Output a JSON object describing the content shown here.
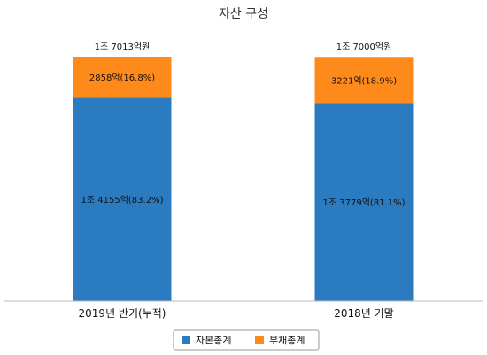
{
  "chart_data": {
    "type": "bar",
    "stacked": true,
    "title": "자산 구성",
    "categories": [
      "2019년 반기(누적)",
      "2018년 기말"
    ],
    "series": [
      {
        "name": "자본총계",
        "color": "#2b7bc0",
        "values": [
          14155,
          13779
        ],
        "labels": [
          "1조 4155억(83.2%)",
          "1조 3779억(81.1%)"
        ]
      },
      {
        "name": "부채총계",
        "color": "#ff8a1c",
        "values": [
          2858,
          3221
        ],
        "labels": [
          "2858억(16.8%)",
          "3221억(18.9%)"
        ]
      }
    ],
    "totals": [
      17013,
      17000
    ],
    "total_labels": [
      "1조 7013억원",
      "1조 7000억원"
    ],
    "ylim": [
      0,
      17013
    ],
    "grid": false,
    "legend_position": "bottom"
  }
}
